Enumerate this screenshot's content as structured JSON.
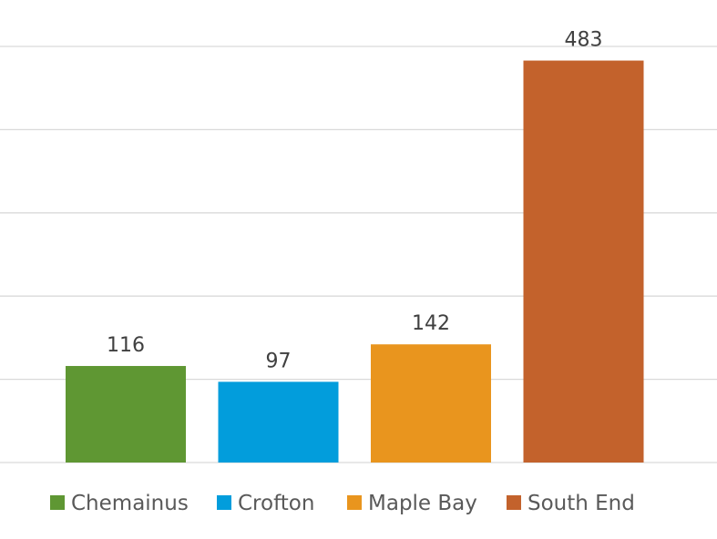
{
  "chart_data": {
    "type": "bar",
    "categories": [
      "Chemainus",
      "Crofton",
      "Maple Bay",
      "South End"
    ],
    "values": [
      116,
      97,
      142,
      483
    ],
    "colors": [
      "#5f9733",
      "#029ddc",
      "#e9951e",
      "#c3622c"
    ],
    "ylim": [
      0,
      500
    ],
    "y_gridline_step": 100,
    "grid": true,
    "legend": "bottom",
    "data_labels": [
      "116",
      "97",
      "142",
      "483"
    ]
  }
}
